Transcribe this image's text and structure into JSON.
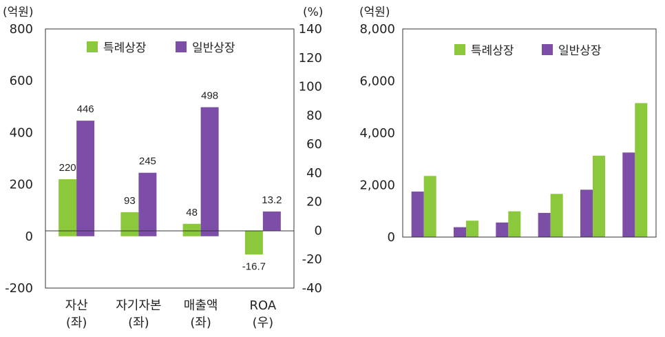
{
  "chart_data": [
    {
      "type": "bar",
      "y_unit_left": "(억원)",
      "y_unit_right": "(%)",
      "ylim_left": [
        -200,
        800
      ],
      "ylim_right": [
        -40,
        140
      ],
      "yticks_left": [
        "800",
        "600",
        "400",
        "200",
        "0",
        "-200"
      ],
      "yticks_right": [
        "140",
        "120",
        "100",
        "80",
        "60",
        "40",
        "20",
        "0",
        "-20",
        "-40"
      ],
      "categories": [
        {
          "line1": "자산",
          "line2": "(좌)",
          "axis": "left"
        },
        {
          "line1": "자기자본",
          "line2": "(좌)",
          "axis": "left"
        },
        {
          "line1": "매출액",
          "line2": "(좌)",
          "axis": "left"
        },
        {
          "line1": "ROA",
          "line2": "(우)",
          "axis": "right"
        }
      ],
      "series": [
        {
          "name": "특례상장",
          "color": "#8cc83c",
          "values": [
            220,
            93,
            48,
            -16.7
          ],
          "labels": [
            "220",
            "93",
            "48",
            "-16.7"
          ]
        },
        {
          "name": "일반상장",
          "color": "#7d4ea8",
          "values": [
            446,
            245,
            498,
            13.2
          ],
          "labels": [
            "446",
            "245",
            "498",
            "13.2"
          ]
        }
      ],
      "legend": "top"
    },
    {
      "type": "bar",
      "y_unit_left": "(억원)",
      "ylim": [
        0,
        8000
      ],
      "yticks": [
        "8,000",
        "6,000",
        "4,000",
        "2,000",
        "0"
      ],
      "group_count": 6,
      "series": [
        {
          "name": "일반상장",
          "color": "#7d4ea8",
          "values": [
            1750,
            380,
            560,
            930,
            1820,
            3250
          ]
        },
        {
          "name": "특례상장",
          "color": "#8cc83c",
          "values": [
            2350,
            630,
            990,
            1660,
            3130,
            5150
          ]
        }
      ],
      "legend_order": [
        "특례상장",
        "일반상장"
      ],
      "legend": "top"
    }
  ]
}
